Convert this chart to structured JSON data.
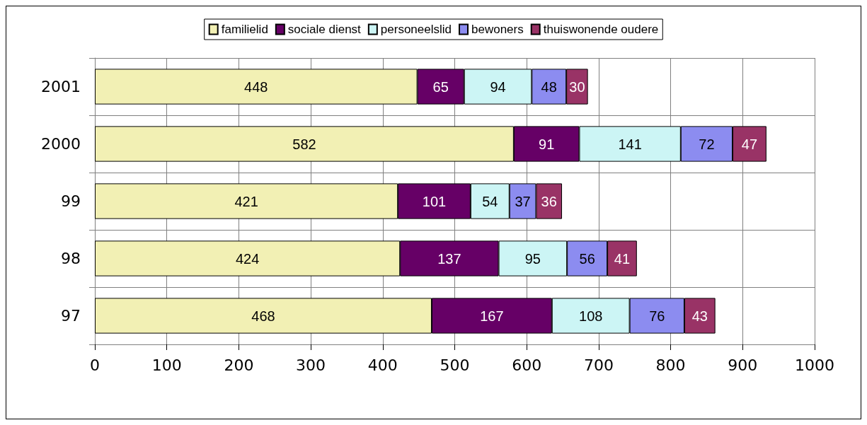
{
  "chart_data": {
    "type": "bar",
    "orientation": "horizontal",
    "stacked": true,
    "categories": [
      "2001",
      "2000",
      "99",
      "98",
      "97"
    ],
    "series": [
      {
        "name": "familielid",
        "color": "#f2f0b4",
        "values": [
          448,
          582,
          421,
          424,
          468
        ]
      },
      {
        "name": "sociale dienst",
        "color": "#660066",
        "values": [
          65,
          91,
          101,
          137,
          167
        ]
      },
      {
        "name": "personeelslid",
        "color": "#ccf5f5",
        "values": [
          94,
          141,
          54,
          95,
          108
        ]
      },
      {
        "name": "bewoners",
        "color": "#8c8cf0",
        "values": [
          48,
          72,
          37,
          56,
          76
        ]
      },
      {
        "name": "thuiswonende oudere",
        "color": "#993366",
        "values": [
          30,
          47,
          36,
          41,
          43
        ]
      }
    ],
    "xlim": [
      0,
      1000
    ],
    "xticks": [
      0,
      100,
      200,
      300,
      400,
      500,
      600,
      700,
      800,
      900,
      1000
    ],
    "grid": true,
    "legend": "top",
    "data_labels": true
  }
}
